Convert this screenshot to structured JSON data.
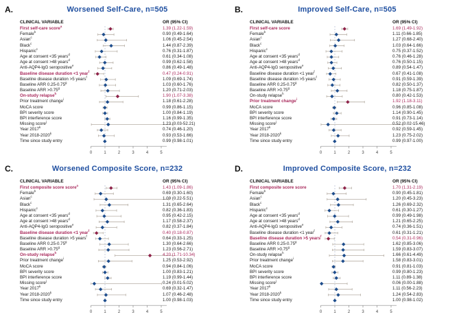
{
  "colors": {
    "title_blue": "#1f4fa0",
    "significant_text": "#a8295b",
    "marker_blue": "#1e4d8c",
    "marker_red": "#8e2349",
    "ci_line": "#b5ada3",
    "reference_line": "#b9c2d4",
    "axis_line": "#8a8a8a",
    "tick_label": "#444444"
  },
  "chart_data": [
    {
      "id": "A",
      "panel_label": "A.",
      "type": "scatter",
      "variant": "forest-plot",
      "title": "Worsened Self-Care, n=505",
      "col_variable_header": "CLINICAL VARIABLE",
      "col_or_header": "OR (95% CI)",
      "x_ticks": [
        0,
        1,
        2,
        3,
        4,
        5
      ],
      "xlim": [
        0,
        5.9
      ],
      "reference_line": 1,
      "rows": [
        {
          "label": "First self-care score",
          "sup": "a",
          "text": "1.39 (1.22-1.59)",
          "or": 1.39,
          "lo": 1.22,
          "hi": 1.59,
          "sig": true
        },
        {
          "label": "Female",
          "sup": "b",
          "text": "0.90 (0.49-1.64)",
          "or": 0.9,
          "lo": 0.49,
          "hi": 1.64,
          "sig": false
        },
        {
          "label": "Asian",
          "sup": "c",
          "text": "1.06 (0.45-2.54)",
          "or": 1.06,
          "lo": 0.45,
          "hi": 2.54,
          "sig": false
        },
        {
          "label": "Black",
          "sup": "c",
          "text": "1.44 (0.87-2.39)",
          "or": 1.44,
          "lo": 0.87,
          "hi": 2.39,
          "sig": false
        },
        {
          "label": "Hispanic",
          "sup": "c",
          "text": "0.76 (0.31-1.87)",
          "or": 0.76,
          "lo": 0.31,
          "hi": 1.87,
          "sig": false
        },
        {
          "label": "Age at consent <35 years",
          "sup": "d",
          "text": "0.61 (0.34-1.08)",
          "or": 0.61,
          "lo": 0.34,
          "hi": 1.08,
          "sig": false
        },
        {
          "label": "Age at consent >48 years",
          "sup": "d",
          "text": "0.99 (0.62-1.58)",
          "or": 0.99,
          "lo": 0.62,
          "hi": 1.58,
          "sig": false
        },
        {
          "label": "Anti-AQP4-IgG seropositive",
          "sup": "e",
          "text": "0.86 (0.49-1.48)",
          "or": 0.86,
          "lo": 0.49,
          "hi": 1.48,
          "sig": false
        },
        {
          "label": "Baseline disease duration <1 year",
          "sup": "f",
          "text": "0.47 (0.24-0.91)",
          "or": 0.47,
          "lo": 0.24,
          "hi": 0.91,
          "sig": true
        },
        {
          "label": "Baseline disease duration >5 years",
          "sup": "f",
          "text": "1.09 (0.69-1.74)",
          "or": 1.09,
          "lo": 0.69,
          "hi": 1.74,
          "sig": false
        },
        {
          "label": "Baseline ARR 0.25-0.75",
          "sup": "g",
          "text": "1.03 (0.60-1.76)",
          "or": 1.03,
          "lo": 0.6,
          "hi": 1.76,
          "sig": false
        },
        {
          "label": "Baseline ARR >0.75",
          "sup": "g",
          "text": "1.20 (0.71-2.03)",
          "or": 1.2,
          "lo": 0.71,
          "hi": 2.03,
          "sig": false
        },
        {
          "label": "On-study relapse",
          "sup": "h",
          "text": "1.90 (1.07-3.38)",
          "or": 1.9,
          "lo": 1.07,
          "hi": 3.38,
          "sig": true
        },
        {
          "label": "Prior treatment change",
          "sup": "i",
          "text": "1.18 (0.61-2.28)",
          "or": 1.18,
          "lo": 0.61,
          "hi": 2.28,
          "sig": false
        },
        {
          "label": "MoCA score",
          "sup": "",
          "text": "0.99 (0.86-1.15)",
          "or": 0.99,
          "lo": 0.86,
          "hi": 1.15,
          "sig": false
        },
        {
          "label": "BPI severity score",
          "sup": "",
          "text": "1.00 (0.84-1.19)",
          "or": 1.0,
          "lo": 0.84,
          "hi": 1.19,
          "sig": false
        },
        {
          "label": "BPI interference score",
          "sup": "",
          "text": "1.16 (0.99-1.35)",
          "or": 1.16,
          "lo": 0.99,
          "hi": 1.35,
          "sig": false
        },
        {
          "label": "Missing score",
          "sup": "j",
          "text": "1.23 (0.03-52.21)",
          "or": 1.23,
          "lo": 0.03,
          "hi": 52.21,
          "sig": false
        },
        {
          "label": "Year 2017",
          "sup": "k",
          "text": "0.74 (0.46-1.20)",
          "or": 0.74,
          "lo": 0.46,
          "hi": 1.2,
          "sig": false
        },
        {
          "label": "Year 2018-2020",
          "sup": "k",
          "text": "0.93 (0.53-1.66)",
          "or": 0.93,
          "lo": 0.53,
          "hi": 1.66,
          "sig": false
        },
        {
          "label": "Time since study entry",
          "sup": "",
          "text": "0.99 (0.98-1.01)",
          "or": 0.99,
          "lo": 0.98,
          "hi": 1.01,
          "sig": false
        }
      ]
    },
    {
      "id": "B",
      "panel_label": "B.",
      "type": "scatter",
      "variant": "forest-plot",
      "title": "Improved Self-Care, n=505",
      "col_variable_header": "CLINICAL VARIABLE",
      "col_or_header": "OR (95% CI)",
      "x_ticks": [
        0,
        1,
        2,
        3,
        4,
        5
      ],
      "xlim": [
        0,
        5.9
      ],
      "reference_line": 1,
      "rows": [
        {
          "label": "First self-care score",
          "sup": "",
          "text": "1.69 (1.49-1.92)",
          "or": 1.69,
          "lo": 1.49,
          "hi": 1.92,
          "sig": true
        },
        {
          "label": "Female",
          "sup": "b",
          "text": "1.11 (0.66-1.85)",
          "or": 1.11,
          "lo": 0.66,
          "hi": 1.85,
          "sig": false
        },
        {
          "label": "Asian",
          "sup": "c",
          "text": "1.27 (0.68-2.40)",
          "or": 1.27,
          "lo": 0.68,
          "hi": 2.4,
          "sig": false
        },
        {
          "label": "Black",
          "sup": "c",
          "text": "1.03 (0.64-1.66)",
          "or": 1.03,
          "lo": 0.64,
          "hi": 1.66,
          "sig": false
        },
        {
          "label": "Hispanic",
          "sup": "c",
          "text": "0.75 (0.37-1.52)",
          "or": 0.75,
          "lo": 0.37,
          "hi": 1.52,
          "sig": false
        },
        {
          "label": "Age at consent <35 years",
          "sup": "d",
          "text": "0.76 (0.46-1.28)",
          "or": 0.76,
          "lo": 0.46,
          "hi": 1.28,
          "sig": false
        },
        {
          "label": "Age at consent >48 years",
          "sup": "d",
          "text": "0.76 (0.50-1.15)",
          "or": 0.76,
          "lo": 0.5,
          "hi": 1.15,
          "sig": false
        },
        {
          "label": "Anti-AQP4-IgG seropositive",
          "sup": "e",
          "text": "0.89 (0.54-1.47)",
          "or": 0.89,
          "lo": 0.54,
          "hi": 1.47,
          "sig": false
        },
        {
          "label": "Baseline disease duration <1 year",
          "sup": "f",
          "text": "0.67 (0.41-1.08)",
          "or": 0.67,
          "lo": 0.41,
          "hi": 1.08,
          "sig": false
        },
        {
          "label": "Baseline disease duration >5 years",
          "sup": "f",
          "text": "0.91 (0.59-1.39)",
          "or": 0.91,
          "lo": 0.59,
          "hi": 1.39,
          "sig": false
        },
        {
          "label": "Baseline ARR 0.25-0.75",
          "sup": "g",
          "text": "0.82 (0.50-1.37)",
          "or": 0.82,
          "lo": 0.5,
          "hi": 1.37,
          "sig": false
        },
        {
          "label": "Baseline ARR >0.75",
          "sup": "g",
          "text": "1.18 (0.75-1.87)",
          "or": 1.18,
          "lo": 0.75,
          "hi": 1.87,
          "sig": false
        },
        {
          "label": "On-study relapse",
          "sup": "h",
          "text": "0.80 (0.42-1.53)",
          "or": 0.8,
          "lo": 0.42,
          "hi": 1.53,
          "sig": false
        },
        {
          "label": "Prior treatment change",
          "sup": "i",
          "text": "1.92 (1.18-3.11)",
          "or": 1.92,
          "lo": 1.18,
          "hi": 3.11,
          "sig": true
        },
        {
          "label": "MoCA score",
          "sup": "",
          "text": "0.96 (0.85-1.08)",
          "or": 0.96,
          "lo": 0.85,
          "hi": 1.08,
          "sig": false
        },
        {
          "label": "BPI severity score",
          "sup": "",
          "text": "1.14 (0.90-1.45)",
          "or": 1.14,
          "lo": 0.9,
          "hi": 1.45,
          "sig": false
        },
        {
          "label": "BPI interference score",
          "sup": "",
          "text": "0.91 (0.73-1.14)",
          "or": 0.91,
          "lo": 0.73,
          "hi": 1.14,
          "sig": false
        },
        {
          "label": "Missing score",
          "sup": "j",
          "text": "0.52 (0.02-15.46)",
          "or": 0.52,
          "lo": 0.02,
          "hi": 15.46,
          "sig": false
        },
        {
          "label": "Year 2017",
          "sup": "k",
          "text": "0.92 (0.59-1.45)",
          "or": 0.92,
          "lo": 0.59,
          "hi": 1.45,
          "sig": false
        },
        {
          "label": "Year 2018-2020",
          "sup": "k",
          "text": "1.23 (0.75-2.02)",
          "or": 1.23,
          "lo": 0.75,
          "hi": 2.02,
          "sig": false
        },
        {
          "label": "Time since study entry",
          "sup": "",
          "text": "0.99 (0.97-1.00)",
          "or": 0.99,
          "lo": 0.97,
          "hi": 1.0,
          "sig": false
        }
      ]
    },
    {
      "id": "C",
      "panel_label": "C.",
      "type": "scatter",
      "variant": "forest-plot",
      "title": "Worsened Composite Score, n=232",
      "col_variable_header": "CLINICAL VARIABLE",
      "col_or_header": "OR (95% CI)",
      "x_ticks": [
        0,
        1,
        2,
        3,
        4,
        5
      ],
      "xlim": [
        0,
        5.9
      ],
      "reference_line": 1,
      "rows": [
        {
          "label": "First composite score score",
          "sup": "a",
          "text": "1.43 (1.09-1.86)",
          "or": 1.43,
          "lo": 1.09,
          "hi": 1.86,
          "sig": true
        },
        {
          "label": "Female",
          "sup": "b",
          "text": "0.69 (0.30-1.60)",
          "or": 0.69,
          "lo": 0.3,
          "hi": 1.6,
          "sig": false
        },
        {
          "label": "Asian",
          "sup": "c",
          "text": "1.09 (0.22-5.51)",
          "or": 1.09,
          "lo": 0.22,
          "hi": 5.51,
          "sig": false
        },
        {
          "label": "Black",
          "sup": "c",
          "text": "1.31 (0.65-2.64)",
          "or": 1.31,
          "lo": 0.65,
          "hi": 2.64,
          "sig": false
        },
        {
          "label": "Hispanic",
          "sup": "c",
          "text": "0.82 (0.36-1.83)",
          "or": 0.82,
          "lo": 0.36,
          "hi": 1.83,
          "sig": false
        },
        {
          "label": "Age at consent <35 years",
          "sup": "d",
          "text": "0.95 (0.42-2.15)",
          "or": 0.95,
          "lo": 0.42,
          "hi": 2.15,
          "sig": false
        },
        {
          "label": "Age at consent >48 years",
          "sup": "d",
          "text": "1.17 (0.58-2.37)",
          "or": 1.17,
          "lo": 0.58,
          "hi": 2.37,
          "sig": false
        },
        {
          "label": "Anti-AQP4-IgG seropositive",
          "sup": "e",
          "text": "0.82 (0.37-1.84)",
          "or": 0.82,
          "lo": 0.37,
          "hi": 1.84,
          "sig": false
        },
        {
          "label": "Baseline disease duration <1 year",
          "sup": "f",
          "text": "0.40 (0.18-0.87)",
          "or": 0.4,
          "lo": 0.18,
          "hi": 0.87,
          "sig": true
        },
        {
          "label": "Baseline disease duration >5 years",
          "sup": "f",
          "text": "0.64 (0.33-1.25)",
          "or": 0.64,
          "lo": 0.33,
          "hi": 1.25,
          "sig": false
        },
        {
          "label": "Baseline ARR 0.25-0.75",
          "sup": "g",
          "text": "1.30 (0.64-2.66)",
          "or": 1.3,
          "lo": 0.64,
          "hi": 2.66,
          "sig": false
        },
        {
          "label": "Baseline ARR >0.75",
          "sup": "g",
          "text": "1.23 (0.56-2.71)",
          "or": 1.23,
          "lo": 0.56,
          "hi": 2.71,
          "sig": false
        },
        {
          "label": "On-study relapse",
          "sup": "h",
          "text": "4.20 (1.71-10.34)",
          "or": 4.2,
          "lo": 1.71,
          "hi": 10.34,
          "sig": true
        },
        {
          "label": "Prior treatment change",
          "sup": "i",
          "text": "1.25 (0.53-2.92)",
          "or": 1.25,
          "lo": 0.53,
          "hi": 2.92,
          "sig": false
        },
        {
          "label": "MoCA score",
          "sup": "",
          "text": "0.94 (0.84-1.06)",
          "or": 0.94,
          "lo": 0.84,
          "hi": 1.06,
          "sig": false
        },
        {
          "label": "BPI severity score",
          "sup": "",
          "text": "1.00 (0.83-1.21)",
          "or": 1.0,
          "lo": 0.83,
          "hi": 1.21,
          "sig": false
        },
        {
          "label": "BPI interference score",
          "sup": "",
          "text": "1.19 (0.99-1.44)",
          "or": 1.19,
          "lo": 0.99,
          "hi": 1.44,
          "sig": false
        },
        {
          "label": "Missing score",
          "sup": "j",
          "text": "0.24 (0.01-5.02)",
          "or": 0.24,
          "lo": 0.01,
          "hi": 5.02,
          "sig": false
        },
        {
          "label": "Year 2017",
          "sup": "k",
          "text": "0.69 (0.32-1.47)",
          "or": 0.69,
          "lo": 0.32,
          "hi": 1.47,
          "sig": false
        },
        {
          "label": "Year 2018-2020",
          "sup": "k",
          "text": "1.07 (0.46-2.48)",
          "or": 1.07,
          "lo": 0.46,
          "hi": 2.48,
          "sig": false
        },
        {
          "label": "Time since study entry",
          "sup": "",
          "text": "1.00 (0.98-1.03)",
          "or": 1.0,
          "lo": 0.98,
          "hi": 1.03,
          "sig": false
        }
      ]
    },
    {
      "id": "D",
      "panel_label": "D.",
      "type": "scatter",
      "variant": "forest-plot",
      "title": "Improved Composite Score, n=232",
      "col_variable_header": "CLINICAL VARIABLE",
      "col_or_header": "OR (95% CI)",
      "x_ticks": [
        0,
        1,
        2,
        3,
        4,
        5
      ],
      "xlim": [
        0,
        5.9
      ],
      "reference_line": 1,
      "rows": [
        {
          "label": "First composite score score",
          "sup": "",
          "text": "1.70 (1.31-2.19)",
          "or": 1.7,
          "lo": 1.31,
          "hi": 2.19,
          "sig": true
        },
        {
          "label": "Female",
          "sup": "b",
          "text": "0.90 (0.45-1.81)",
          "or": 0.9,
          "lo": 0.45,
          "hi": 1.81,
          "sig": false
        },
        {
          "label": "Asian",
          "sup": "c",
          "text": "1.20 (0.45-3.23)",
          "or": 1.2,
          "lo": 0.45,
          "hi": 3.23,
          "sig": false
        },
        {
          "label": "Black",
          "sup": "c",
          "text": "1.26 (0.69-2.32)",
          "or": 1.26,
          "lo": 0.69,
          "hi": 2.32,
          "sig": false
        },
        {
          "label": "Hispanic",
          "sup": "c",
          "text": "0.61 (0.30-1.27)",
          "or": 0.61,
          "lo": 0.3,
          "hi": 1.27,
          "sig": false
        },
        {
          "label": "Age at consent <35 years",
          "sup": "d",
          "text": "0.99 (0.49-1.98)",
          "or": 0.99,
          "lo": 0.49,
          "hi": 1.98,
          "sig": false
        },
        {
          "label": "Age at consent >48 years",
          "sup": "d",
          "text": "1.21 (0.65-2.25)",
          "or": 1.21,
          "lo": 0.65,
          "hi": 2.25,
          "sig": false
        },
        {
          "label": "Anti-AQP4-IgG seropositive",
          "sup": "e",
          "text": "0.74 (0.36-1.51)",
          "or": 0.74,
          "lo": 0.36,
          "hi": 1.51,
          "sig": false
        },
        {
          "label": "Baseline disease duration <1 year",
          "sup": "f",
          "text": "0.61 (0.31-1.21)",
          "or": 0.61,
          "lo": 0.31,
          "hi": 1.21,
          "sig": false
        },
        {
          "label": "Baseline disease duration >5 years",
          "sup": "f",
          "text": "0.54 (0.31-0.96)",
          "or": 0.54,
          "lo": 0.31,
          "hi": 0.96,
          "sig": true
        },
        {
          "label": "Baseline ARR 0.25-0.75",
          "sup": "g",
          "text": "1.62 (0.85-3.06)",
          "or": 1.62,
          "lo": 0.85,
          "hi": 3.06,
          "sig": false
        },
        {
          "label": "Baseline ARR >0.75",
          "sup": "g",
          "text": "1.59 (0.83-3.07)",
          "or": 1.59,
          "lo": 0.83,
          "hi": 3.07,
          "sig": false
        },
        {
          "label": "On-study relapse",
          "sup": "h",
          "text": "1.66 (0.61-4.49)",
          "or": 1.66,
          "lo": 0.61,
          "hi": 4.49,
          "sig": false
        },
        {
          "label": "Prior treatment change",
          "sup": "i",
          "text": "1.58 (0.83-3.01)",
          "or": 1.58,
          "lo": 0.83,
          "hi": 3.01,
          "sig": false
        },
        {
          "label": "MoCA score",
          "sup": "",
          "text": "0.91 (0.81-1.03)",
          "or": 0.91,
          "lo": 0.81,
          "hi": 1.03,
          "sig": false
        },
        {
          "label": "BPI severity score",
          "sup": "",
          "text": "0.99 (0.80-1.23)",
          "or": 0.99,
          "lo": 0.8,
          "hi": 1.23,
          "sig": false
        },
        {
          "label": "BPI interference score",
          "sup": "",
          "text": "1.11 (0.89-1.38)",
          "or": 1.11,
          "lo": 0.89,
          "hi": 1.38,
          "sig": false
        },
        {
          "label": "Missing score",
          "sup": "j",
          "text": "0.06 (0.00-1.88)",
          "or": 0.06,
          "lo": 0.0,
          "hi": 1.88,
          "sig": false
        },
        {
          "label": "Year 2017",
          "sup": "k",
          "text": "1.11 (0.56-2.23)",
          "or": 1.11,
          "lo": 0.56,
          "hi": 2.23,
          "sig": false
        },
        {
          "label": "Year 2018-2020",
          "sup": "k",
          "text": "1.24 (0.54-2.83)",
          "or": 1.24,
          "lo": 0.54,
          "hi": 2.83,
          "sig": false
        },
        {
          "label": "Time since study entry",
          "sup": "",
          "text": "1.00 (0.98-1.02)",
          "or": 1.0,
          "lo": 0.98,
          "hi": 1.02,
          "sig": false
        }
      ]
    }
  ]
}
